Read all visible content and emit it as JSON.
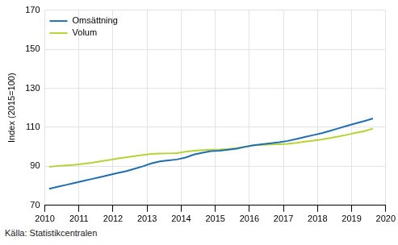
{
  "chart_data": {
    "type": "line",
    "y_label": "Index (2015=100)",
    "source": "Källa: Statistikcentralen",
    "x": [
      2010.125,
      2010.375,
      2010.625,
      2010.875,
      2011.125,
      2011.375,
      2011.625,
      2011.875,
      2012.125,
      2012.375,
      2012.625,
      2012.875,
      2013.125,
      2013.375,
      2013.625,
      2013.875,
      2014.125,
      2014.375,
      2014.625,
      2014.875,
      2015.125,
      2015.375,
      2015.625,
      2015.875,
      2016.125,
      2016.375,
      2016.625,
      2016.875,
      2017.125,
      2017.375,
      2017.625,
      2017.875,
      2018.125,
      2018.375,
      2018.625,
      2018.875,
      2019.125,
      2019.375,
      2019.625
    ],
    "series": [
      {
        "name": "Omsättning",
        "color": "#1f6eb0",
        "values": [
          78.5,
          79.5,
          80.5,
          81.5,
          82.5,
          83.5,
          84.5,
          85.5,
          86.5,
          87.5,
          88.7,
          90,
          91.5,
          92.5,
          93,
          93.5,
          94.5,
          96,
          97,
          97.8,
          98,
          98.5,
          99,
          100,
          100.8,
          101.3,
          101.8,
          102.3,
          103,
          104,
          105,
          106,
          107,
          108.2,
          109.5,
          110.8,
          112,
          113.2,
          114.5
        ]
      },
      {
        "name": "Volum",
        "color": "#b5d334",
        "values": [
          89.7,
          90.2,
          90.5,
          90.8,
          91.3,
          91.8,
          92.5,
          93.2,
          94,
          94.6,
          95.2,
          95.8,
          96.3,
          96.5,
          96.6,
          96.8,
          97.5,
          98,
          98.3,
          98.5,
          98.6,
          98.8,
          99.3,
          100,
          100.8,
          101,
          101.2,
          101.3,
          101.5,
          102,
          102.6,
          103.2,
          103.8,
          104.5,
          105.3,
          106.2,
          107.2,
          108,
          109.3
        ]
      }
    ],
    "xlim": [
      2010,
      2020
    ],
    "xticks": [
      2010,
      2011,
      2012,
      2013,
      2014,
      2015,
      2016,
      2017,
      2018,
      2019,
      2020
    ],
    "ylim": [
      70,
      170
    ],
    "yticks": [
      70,
      90,
      110,
      130,
      150,
      170
    ],
    "grid": true,
    "legend": "upper left"
  }
}
